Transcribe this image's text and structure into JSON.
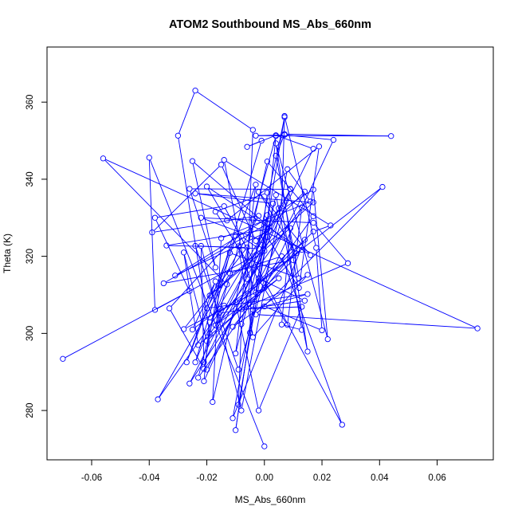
{
  "chart_data": {
    "type": "line",
    "title": "ATOM2 Southbound MS_Abs_660nm",
    "xlabel": "MS_Abs_660nm",
    "ylabel": "Theta (K)",
    "xlim": [
      -0.0755,
      0.0795
    ],
    "ylim": [
      267.2,
      374.3
    ],
    "xticks": [
      -0.06,
      -0.04,
      -0.02,
      0.0,
      0.02,
      0.04,
      0.06
    ],
    "xtick_labels": [
      "-0.06",
      "-0.04",
      "-0.02",
      "0.00",
      "0.02",
      "0.04",
      "0.06"
    ],
    "yticks": [
      280,
      300,
      320,
      340,
      360
    ],
    "ytick_labels": [
      "280",
      "300",
      "320",
      "340",
      "360"
    ],
    "grid": false,
    "series": [
      {
        "color": "#0000ff",
        "marker": "open-circle",
        "points": [
          [
            -0.07,
            293.4
          ],
          [
            -0.026,
            311.0
          ],
          [
            -0.038,
            330.0
          ],
          [
            -0.014,
            333.0
          ],
          [
            0.027,
            276.3
          ],
          [
            0.006,
            320.0
          ],
          [
            -0.012,
            315.6
          ],
          [
            -0.037,
            282.9
          ],
          [
            -0.014,
            307.2
          ],
          [
            -0.025,
            301.0
          ],
          [
            -0.017,
            313.5
          ],
          [
            -0.027,
            292.5
          ],
          [
            -0.01,
            325.3
          ],
          [
            -0.033,
            306.5
          ],
          [
            -0.021,
            290.8
          ],
          [
            -0.016,
            312.3
          ],
          [
            -0.003,
            338.6
          ],
          [
            -0.01,
            294.8
          ],
          [
            0.001,
            328.4
          ],
          [
            -0.035,
            313.0
          ],
          [
            0.01,
            319.0
          ],
          [
            -0.02,
            298.0
          ],
          [
            -0.028,
            321.0
          ],
          [
            -0.023,
            297.0
          ],
          [
            0.005,
            314.3
          ],
          [
            -0.017,
            302.1
          ],
          [
            -0.008,
            325.2
          ],
          [
            -0.002,
            322.0
          ],
          [
            -0.024,
            322.7
          ],
          [
            -0.009,
            290.6
          ],
          [
            0.009,
            337.5
          ],
          [
            -0.021,
            287.6
          ],
          [
            -0.019,
            302.9
          ],
          [
            0.005,
            332.5
          ],
          [
            0.002,
            326.7
          ],
          [
            -0.031,
            315.0
          ],
          [
            0.017,
            337.3
          ],
          [
            0.022,
            298.5
          ],
          [
            0.004,
            349.3
          ],
          [
            0.015,
            295.3
          ],
          [
            0.004,
            335.9
          ],
          [
            -0.004,
            306.2
          ],
          [
            -0.011,
            278.0
          ],
          [
            0.014,
            324.3
          ],
          [
            -0.011,
            301.7
          ],
          [
            0.015,
            315.2
          ],
          [
            -0.004,
            299.0
          ],
          [
            -0.009,
            322.6
          ],
          [
            -0.003,
            310.6
          ],
          [
            0.007,
            356.1
          ],
          [
            -0.008,
            302.4
          ],
          [
            -0.009,
            281.5
          ],
          [
            0.003,
            333.7
          ],
          [
            -0.024,
            336.3
          ],
          [
            0.017,
            334.0
          ],
          [
            -0.019,
            309.8
          ],
          [
            0.009,
            327.3
          ],
          [
            0.006,
            302.3
          ],
          [
            0.013,
            300.9
          ],
          [
            0.006,
            332.5
          ],
          [
            0.007,
            356.4
          ],
          [
            0.018,
            322.2
          ],
          [
            0.02,
            300.8
          ],
          [
            0.0,
            307.0
          ],
          [
            0.015,
            310.2
          ],
          [
            -0.02,
            306.5
          ],
          [
            -0.002,
            330.5
          ],
          [
            -0.039,
            326.2
          ],
          [
            -0.015,
            343.8
          ],
          [
            -0.003,
            324.0
          ],
          [
            0.014,
            336.8
          ],
          [
            -0.002,
            313.5
          ],
          [
            0.01,
            322.3
          ],
          [
            -0.025,
            344.7
          ],
          [
            -0.017,
            317.1
          ],
          [
            -0.026,
            337.5
          ],
          [
            0.009,
            337.4
          ],
          [
            -0.017,
            302.1
          ],
          [
            0.017,
            326.4
          ],
          [
            0.023,
            328.0
          ],
          [
            -0.014,
            345.0
          ],
          [
            -0.006,
            314.1
          ],
          [
            -0.004,
            352.8
          ],
          [
            -0.024,
            363.0
          ],
          [
            -0.03,
            351.3
          ],
          [
            -0.019,
            299.9
          ],
          [
            0.013,
            332.7
          ],
          [
            0.008,
            302.2
          ],
          [
            -0.017,
            331.6
          ],
          [
            0.001,
            336.5
          ],
          [
            -0.001,
            324.2
          ],
          [
            -0.022,
            330.0
          ],
          [
            0.017,
            328.7
          ],
          [
            0.029,
            318.2
          ],
          [
            -0.008,
            306.3
          ],
          [
            0.013,
            306.9
          ],
          [
            -0.002,
            280.0
          ],
          [
            -0.01,
            308.1
          ],
          [
            0.013,
            321.7
          ],
          [
            0.011,
            320.8
          ],
          [
            -0.002,
            336.7
          ],
          [
            0.016,
            320.3
          ],
          [
            -0.02,
            338.1
          ],
          [
            -0.013,
            329.3
          ],
          [
            0.019,
            348.5
          ],
          [
            0.012,
            311.8
          ],
          [
            0.001,
            325.0
          ],
          [
            -0.021,
            292.5
          ],
          [
            -0.022,
            322.7
          ],
          [
            -0.008,
            280.0
          ],
          [
            0.008,
            342.6
          ],
          [
            0.016,
            334.2
          ],
          [
            -0.015,
            324.7
          ],
          [
            -0.018,
            282.2
          ],
          [
            0.001,
            344.6
          ],
          [
            0.017,
            330.4
          ],
          [
            -0.023,
            288.5
          ],
          [
            -0.012,
            320.9
          ],
          [
            0.012,
            314.3
          ],
          [
            0.004,
            346.1
          ],
          [
            0.007,
            351.7
          ],
          [
            0.044,
            351.2
          ],
          [
            -0.003,
            351.3
          ],
          [
            0.007,
            351.5
          ],
          [
            0.024,
            350.2
          ],
          [
            0.0,
            311.8
          ],
          [
            -0.028,
            301.1
          ],
          [
            -0.006,
            322.3
          ],
          [
            -0.034,
            322.8
          ],
          [
            0.001,
            327.0
          ],
          [
            -0.026,
            287.0
          ],
          [
            -0.002,
            314.3
          ],
          [
            0.014,
            308.5
          ],
          [
            -0.016,
            305.2
          ],
          [
            0.041,
            338.0
          ],
          [
            -0.003,
            304.9
          ],
          [
            0.074,
            301.3
          ],
          [
            -0.056,
            345.4
          ],
          [
            -0.013,
            312.7
          ],
          [
            -0.024,
            292.5
          ],
          [
            -0.001,
            350.0
          ],
          [
            -0.006,
            348.4
          ],
          [
            0.004,
            351.4
          ],
          [
            0.017,
            347.9
          ],
          [
            -0.02,
            290.6
          ],
          [
            0.0,
            321.4
          ],
          [
            0.004,
            351.2
          ],
          [
            -0.004,
            329.6
          ],
          [
            -0.005,
            300.2
          ],
          [
            -0.01,
            274.9
          ],
          [
            0.001,
            330.7
          ],
          [
            -0.003,
            320.3
          ],
          [
            -0.038,
            306.1
          ],
          [
            -0.04,
            345.6
          ],
          [
            0.0,
            270.7
          ]
        ]
      }
    ]
  }
}
